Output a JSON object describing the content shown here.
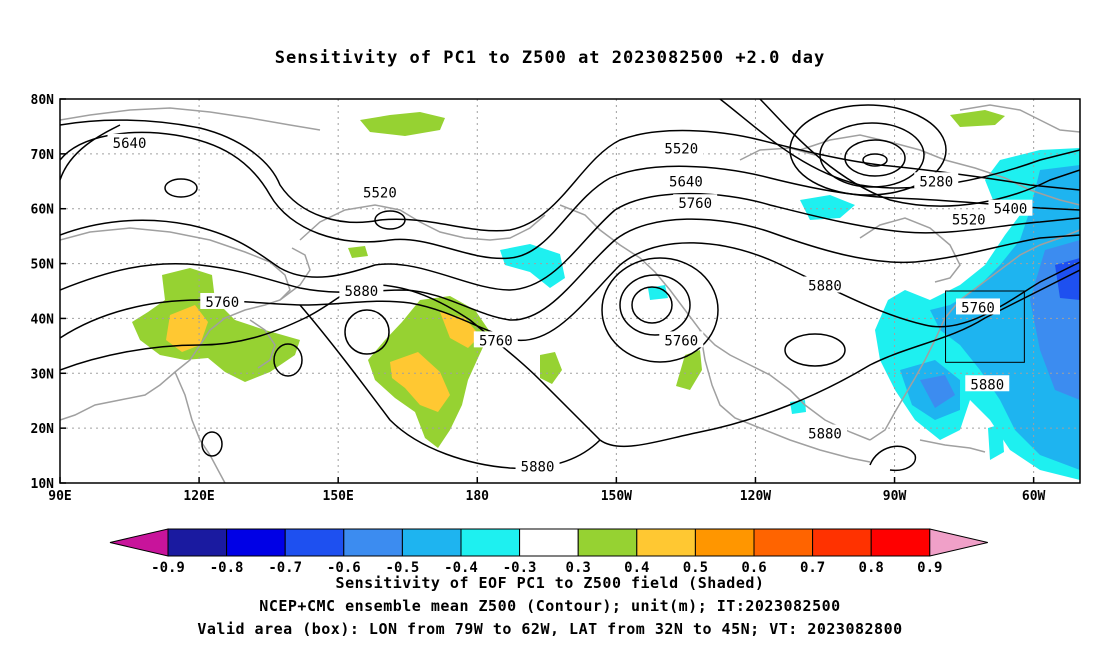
{
  "title": "Sensitivity of PC1 to Z500 at 2023082500 +2.0 day",
  "lat_axis": [
    "80N",
    "70N",
    "60N",
    "50N",
    "40N",
    "30N",
    "20N",
    "10N"
  ],
  "lon_axis": [
    "90E",
    "120E",
    "150E",
    "180",
    "150W",
    "120W",
    "90W",
    "60W"
  ],
  "contour_labels": [
    {
      "text": "5640",
      "lon": 105,
      "lat": 72
    },
    {
      "text": "5520",
      "lon": 159,
      "lat": 63
    },
    {
      "text": "5520",
      "lon": -136,
      "lat": 71
    },
    {
      "text": "5640",
      "lon": -135,
      "lat": 65
    },
    {
      "text": "5760",
      "lon": -133,
      "lat": 61
    },
    {
      "text": "5280",
      "lon": -81,
      "lat": 65
    },
    {
      "text": "5400",
      "lon": -65,
      "lat": 60
    },
    {
      "text": "5520",
      "lon": -74,
      "lat": 58
    },
    {
      "text": "5760",
      "lon": 125,
      "lat": 43
    },
    {
      "text": "5880",
      "lon": 155,
      "lat": 45
    },
    {
      "text": "5760",
      "lon": -176,
      "lat": 36
    },
    {
      "text": "5760",
      "lon": -136,
      "lat": 36
    },
    {
      "text": "5880",
      "lon": -105,
      "lat": 46
    },
    {
      "text": "5760",
      "lon": -72,
      "lat": 42
    },
    {
      "text": "5880",
      "lon": -70,
      "lat": 28
    },
    {
      "text": "5880",
      "lon": -105,
      "lat": 19
    },
    {
      "text": "5880",
      "lon": -167,
      "lat": 13
    }
  ],
  "valid_box": {
    "lon_west": -79,
    "lon_east": -62,
    "lat_south": 32,
    "lat_north": 45
  },
  "colorbar": {
    "labels": [
      "-0.9",
      "-0.8",
      "-0.7",
      "-0.6",
      "-0.5",
      "-0.4",
      "-0.3",
      "0.3",
      "0.4",
      "0.5",
      "0.6",
      "0.7",
      "0.8",
      "0.9"
    ],
    "colors": [
      "#1a1aa0",
      "#0000e6",
      "#1e50f0",
      "#3c8cf0",
      "#1eb4f0",
      "#1ef0f0",
      "#ffffff",
      "#96d232",
      "#ffc832",
      "#ff9600",
      "#ff6400",
      "#ff3200",
      "#ff0000"
    ],
    "left_tip": "#c8149b",
    "right_tip": "#f0a0c8"
  },
  "captions": [
    "Sensitivity of EOF PC1 to Z500 field (Shaded)",
    "NCEP+CMC ensemble mean Z500 (Contour); unit(m); IT:2023082500",
    "Valid area (box): LON from 79W to 62W, LAT from 32N to 45N; VT: 2023082800"
  ]
}
